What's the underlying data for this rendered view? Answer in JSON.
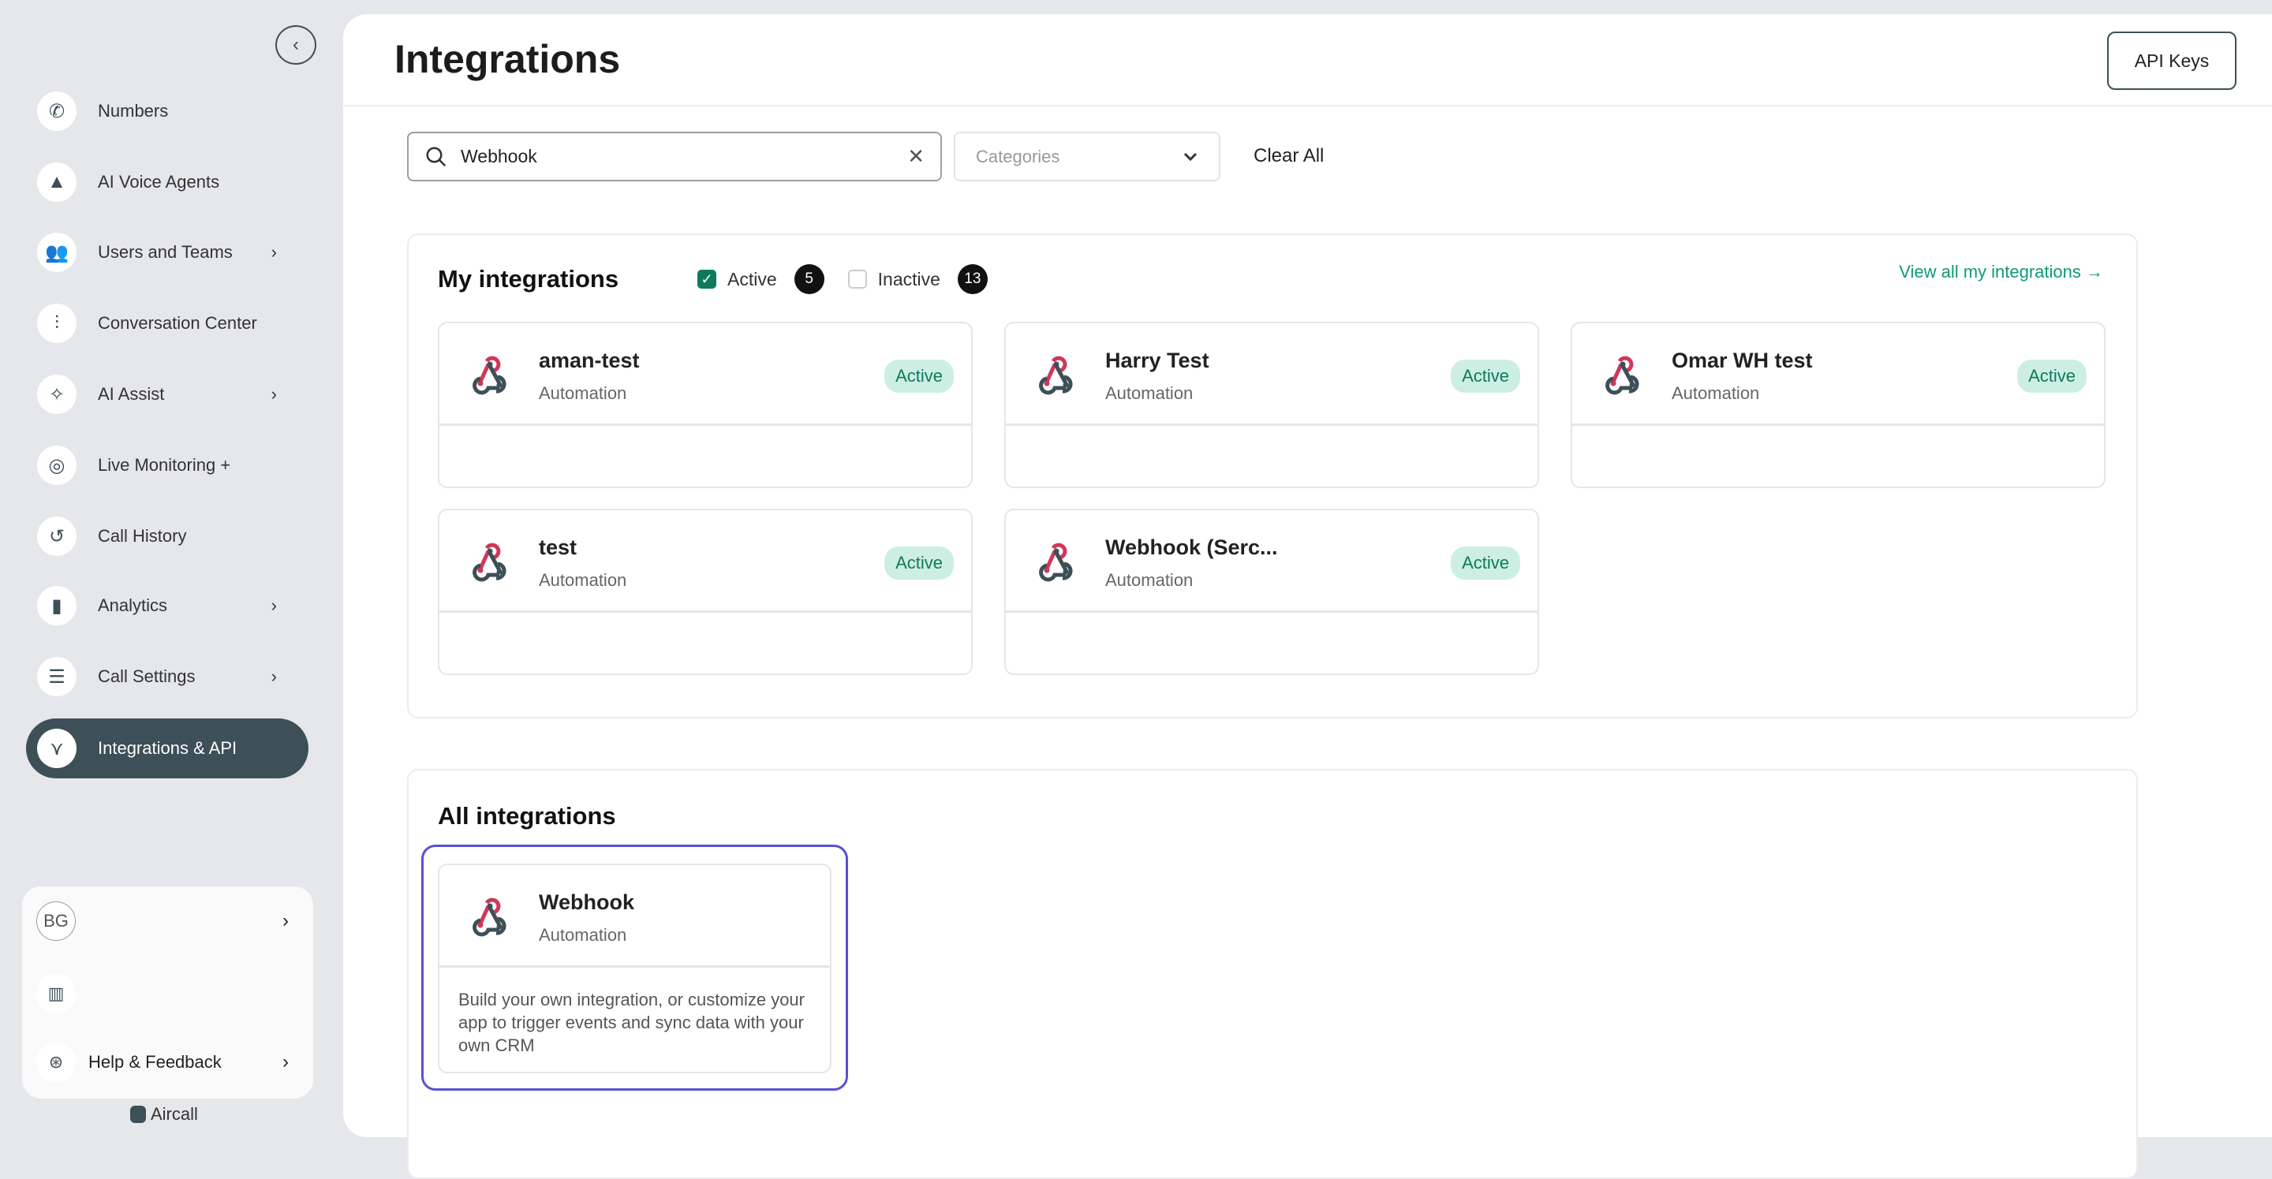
{
  "sidebar": {
    "collapse_icon": "chevron-left-icon",
    "items": [
      {
        "label": "Numbers",
        "icon": "phone-icon",
        "chevron": false
      },
      {
        "label": "AI Voice Agents",
        "icon": "ai-agent-icon",
        "chevron": false
      },
      {
        "label": "Users and Teams",
        "icon": "users-icon",
        "chevron": true
      },
      {
        "label": "Conversation Center",
        "icon": "waveform-icon",
        "chevron": false
      },
      {
        "label": "AI Assist",
        "icon": "sparkle-icon",
        "chevron": true
      },
      {
        "label": "Live Monitoring +",
        "icon": "radar-icon",
        "chevron": false
      },
      {
        "label": "Call History",
        "icon": "history-icon",
        "chevron": false
      },
      {
        "label": "Analytics",
        "icon": "bar-chart-icon",
        "chevron": true
      },
      {
        "label": "Call Settings",
        "icon": "sliders-icon",
        "chevron": true
      },
      {
        "label": "Integrations & API",
        "icon": "integrations-icon",
        "chevron": false,
        "active": true
      }
    ],
    "account": {
      "initials": "BG"
    },
    "help_label": "Help & Feedback",
    "brand": "Aircall",
    "chevron": "›"
  },
  "header": {
    "title": "Integrations",
    "api_keys_label": "API Keys"
  },
  "filters": {
    "search_value": "Webhook",
    "categories_placeholder": "Categories",
    "clear_all_label": "Clear All"
  },
  "my_integrations": {
    "title": "My integrations",
    "active_label": "Active",
    "active_checked": true,
    "active_count": "5",
    "inactive_label": "Inactive",
    "inactive_checked": false,
    "inactive_count": "13",
    "view_all_label": "View all my integrations →",
    "cards": [
      {
        "name": "aman-test",
        "category": "Automation",
        "status": "Active"
      },
      {
        "name": "Harry Test",
        "category": "Automation",
        "status": "Active"
      },
      {
        "name": "Omar WH test",
        "category": "Automation",
        "status": "Active"
      },
      {
        "name": "test",
        "category": "Automation",
        "status": "Active"
      },
      {
        "name": "Webhook (Serc...",
        "category": "Automation",
        "status": "Active"
      }
    ]
  },
  "all_integrations": {
    "title": "All integrations",
    "cards": [
      {
        "name": "Webhook",
        "category": "Automation",
        "description": "Build your own integration, or customize your app to trigger events and sync data with your own CRM"
      }
    ]
  },
  "colors": {
    "accent": "#0e7a5c",
    "sidebar_active": "#3d4f57",
    "highlight": "#5b4fd6",
    "webhook_red": "#d2365a"
  }
}
